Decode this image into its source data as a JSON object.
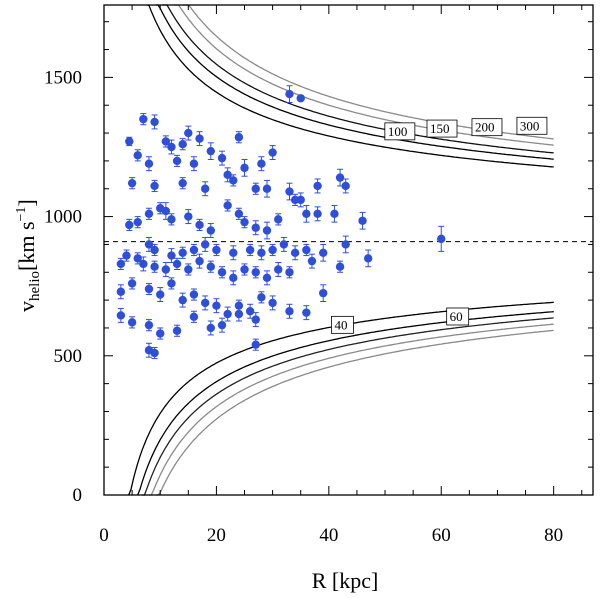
{
  "chart_data": {
    "type": "scatter",
    "title": "",
    "xlabel": "R [kpc]",
    "ylabel_main": "v",
    "ylabel_sub": "helio",
    "ylabel_unit_open": "[km s",
    "ylabel_unit_exp": "−1",
    "ylabel_unit_close": "]",
    "xlim": [
      0,
      87
    ],
    "ylim": [
      0,
      1760
    ],
    "xticks": [
      0,
      20,
      40,
      60,
      80
    ],
    "yticks": [
      0,
      500,
      1000,
      1500
    ],
    "reference_velocity": 910,
    "colors": {
      "points": "#2f4fd8",
      "dark_curve": "#000000",
      "gray_curve": "#8a8a8a"
    },
    "upper_curves": [
      {
        "label": "100",
        "A": 2400,
        "color": "#000000"
      },
      {
        "label": "150",
        "A": 2650,
        "color": "#000000"
      },
      {
        "label": "200",
        "A": 2850,
        "color": "#111111"
      },
      {
        "label": "300",
        "A": 3100,
        "color": "#8a8a8a"
      },
      {
        "label": "",
        "A": 3300,
        "color": "#8a8a8a"
      }
    ],
    "lower_curves": [
      {
        "label": "40",
        "A": 1950,
        "color": "#000000"
      },
      {
        "label": "60",
        "A": 2250,
        "color": "#000000"
      },
      {
        "label": "",
        "A": 2450,
        "color": "#222222"
      },
      {
        "label": "",
        "A": 2650,
        "color": "#8a8a8a"
      },
      {
        "label": "",
        "A": 2850,
        "color": "#8a8a8a"
      }
    ],
    "curve_labels": [
      {
        "text": "100",
        "x": 50.5,
        "y": 1290
      },
      {
        "text": "150",
        "x": 58.0,
        "y": 1300
      },
      {
        "text": "200",
        "x": 66.0,
        "y": 1305
      },
      {
        "text": "300",
        "x": 74.0,
        "y": 1310
      },
      {
        "text": "40",
        "x": 41.0,
        "y": 595
      },
      {
        "text": "60",
        "x": 61.5,
        "y": 625
      }
    ],
    "points": [
      [
        33,
        1440,
        30
      ],
      [
        35,
        1425,
        0
      ],
      [
        7,
        1350,
        20
      ],
      [
        9,
        1340,
        25
      ],
      [
        4.5,
        1270,
        15
      ],
      [
        11,
        1270,
        20
      ],
      [
        15,
        1300,
        25
      ],
      [
        17,
        1280,
        25
      ],
      [
        24,
        1285,
        20
      ],
      [
        12,
        1250,
        25
      ],
      [
        14,
        1260,
        20
      ],
      [
        19,
        1235,
        30
      ],
      [
        30,
        1230,
        25
      ],
      [
        6,
        1220,
        20
      ],
      [
        8,
        1190,
        25
      ],
      [
        13,
        1200,
        20
      ],
      [
        16,
        1190,
        25
      ],
      [
        21,
        1210,
        25
      ],
      [
        25,
        1175,
        30
      ],
      [
        28,
        1190,
        25
      ],
      [
        42,
        1140,
        30
      ],
      [
        43,
        1110,
        25
      ],
      [
        38,
        1110,
        25
      ],
      [
        5,
        1120,
        20
      ],
      [
        9,
        1110,
        20
      ],
      [
        14,
        1120,
        20
      ],
      [
        18,
        1100,
        25
      ],
      [
        22,
        1150,
        25
      ],
      [
        23,
        1130,
        20
      ],
      [
        27,
        1100,
        20
      ],
      [
        29,
        1100,
        30
      ],
      [
        33,
        1090,
        30
      ],
      [
        35,
        1060,
        25
      ],
      [
        4.5,
        970,
        20
      ],
      [
        6,
        980,
        20
      ],
      [
        8,
        1010,
        20
      ],
      [
        10,
        1030,
        20
      ],
      [
        11,
        1020,
        30
      ],
      [
        12,
        990,
        20
      ],
      [
        15,
        1000,
        25
      ],
      [
        17,
        970,
        20
      ],
      [
        19,
        950,
        25
      ],
      [
        22,
        1040,
        20
      ],
      [
        24,
        1010,
        20
      ],
      [
        25,
        980,
        20
      ],
      [
        27,
        960,
        25
      ],
      [
        29,
        950,
        30
      ],
      [
        31,
        990,
        20
      ],
      [
        34,
        1060,
        20
      ],
      [
        36,
        1010,
        30
      ],
      [
        38,
        1010,
        25
      ],
      [
        41,
        1010,
        30
      ],
      [
        46,
        985,
        30
      ],
      [
        60,
        920,
        45
      ],
      [
        8,
        900,
        25
      ],
      [
        9,
        880,
        20
      ],
      [
        12,
        860,
        25
      ],
      [
        14,
        870,
        20
      ],
      [
        16,
        880,
        20
      ],
      [
        18,
        900,
        25
      ],
      [
        20,
        880,
        20
      ],
      [
        23,
        870,
        25
      ],
      [
        26,
        880,
        20
      ],
      [
        28,
        870,
        25
      ],
      [
        30,
        880,
        20
      ],
      [
        32,
        900,
        25
      ],
      [
        34,
        870,
        25
      ],
      [
        36,
        880,
        20
      ],
      [
        39,
        870,
        30
      ],
      [
        43,
        900,
        30
      ],
      [
        47,
        850,
        30
      ],
      [
        3,
        830,
        20
      ],
      [
        4,
        860,
        20
      ],
      [
        6,
        850,
        20
      ],
      [
        7,
        830,
        25
      ],
      [
        9,
        820,
        20
      ],
      [
        11,
        810,
        25
      ],
      [
        13,
        830,
        20
      ],
      [
        15,
        810,
        20
      ],
      [
        17,
        840,
        25
      ],
      [
        19,
        820,
        20
      ],
      [
        21,
        800,
        20
      ],
      [
        23,
        780,
        25
      ],
      [
        25,
        810,
        20
      ],
      [
        27,
        800,
        20
      ],
      [
        29,
        780,
        25
      ],
      [
        31,
        810,
        25
      ],
      [
        33,
        800,
        20
      ],
      [
        37,
        840,
        25
      ],
      [
        42,
        820,
        20
      ],
      [
        3,
        730,
        25
      ],
      [
        5,
        760,
        20
      ],
      [
        8,
        740,
        20
      ],
      [
        10,
        720,
        25
      ],
      [
        12,
        760,
        20
      ],
      [
        14,
        700,
        25
      ],
      [
        16,
        720,
        20
      ],
      [
        18,
        690,
        25
      ],
      [
        20,
        680,
        25
      ],
      [
        22,
        650,
        25
      ],
      [
        24,
        680,
        20
      ],
      [
        26,
        660,
        25
      ],
      [
        28,
        710,
        20
      ],
      [
        30,
        690,
        25
      ],
      [
        39,
        725,
        30
      ],
      [
        3,
        645,
        25
      ],
      [
        5,
        620,
        20
      ],
      [
        8,
        610,
        20
      ],
      [
        10,
        580,
        20
      ],
      [
        13,
        590,
        20
      ],
      [
        16,
        640,
        20
      ],
      [
        19,
        600,
        25
      ],
      [
        21,
        610,
        25
      ],
      [
        24,
        650,
        25
      ],
      [
        27,
        630,
        25
      ],
      [
        33,
        660,
        25
      ],
      [
        36,
        655,
        25
      ],
      [
        8,
        520,
        25
      ],
      [
        9,
        510,
        20
      ],
      [
        27,
        540,
        20
      ]
    ]
  }
}
